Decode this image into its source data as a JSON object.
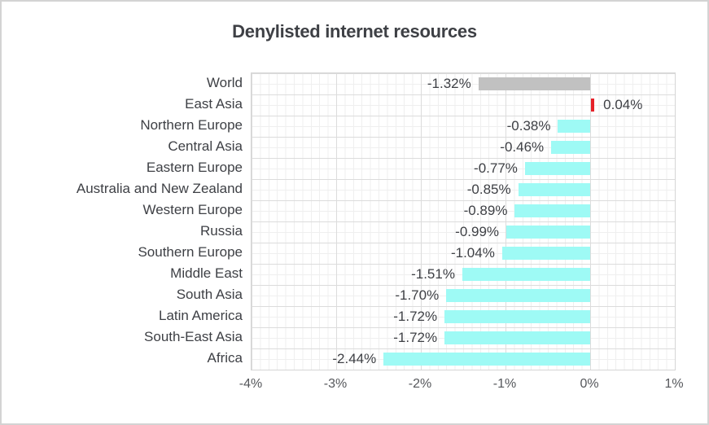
{
  "title": "Denylisted internet resources",
  "colors": {
    "bar_default": "#9efaf5",
    "bar_world": "#c1c1c1",
    "bar_positive": "#e62129",
    "text": "#3e4045",
    "tick_text": "#55575b",
    "grid_minor": "#efefef",
    "grid_major": "#dcdcdc",
    "plot_border": "#d5d5d5"
  },
  "chart_data": {
    "type": "bar",
    "orientation": "horizontal",
    "title": "Denylisted internet resources",
    "categories": [
      "World",
      "East Asia",
      "Northern Europe",
      "Central Asia",
      "Eastern Europe",
      "Australia and New Zealand",
      "Western Europe",
      "Russia",
      "Southern Europe",
      "Middle East",
      "South Asia",
      "Latin America",
      "South-East Asia",
      "Africa"
    ],
    "values": [
      -1.32,
      0.04,
      -0.38,
      -0.46,
      -0.77,
      -0.85,
      -0.89,
      -0.99,
      -1.04,
      -1.51,
      -1.7,
      -1.72,
      -1.72,
      -2.44
    ],
    "value_labels": [
      "-1.32%",
      "0.04%",
      "-0.38%",
      "-0.46%",
      "-0.77%",
      "-0.85%",
      "-0.89%",
      "-0.99%",
      "-1.04%",
      "-1.51%",
      "-1.70%",
      "-1.72%",
      "-1.72%",
      "-2.44%"
    ],
    "bar_colors": [
      "#c1c1c1",
      "#e62129",
      "#9efaf5",
      "#9efaf5",
      "#9efaf5",
      "#9efaf5",
      "#9efaf5",
      "#9efaf5",
      "#9efaf5",
      "#9efaf5",
      "#9efaf5",
      "#9efaf5",
      "#9efaf5",
      "#9efaf5"
    ],
    "x_tick_labels": [
      "-4%",
      "-3%",
      "-2%",
      "-1%",
      "0%",
      "1%"
    ],
    "x_tick_values": [
      -4,
      -3,
      -2,
      -1,
      0,
      1
    ],
    "xlim": [
      -4,
      1
    ],
    "xlabel": "",
    "ylabel": "",
    "grid": "major and minor gridlines, both axes",
    "legend": "none"
  }
}
